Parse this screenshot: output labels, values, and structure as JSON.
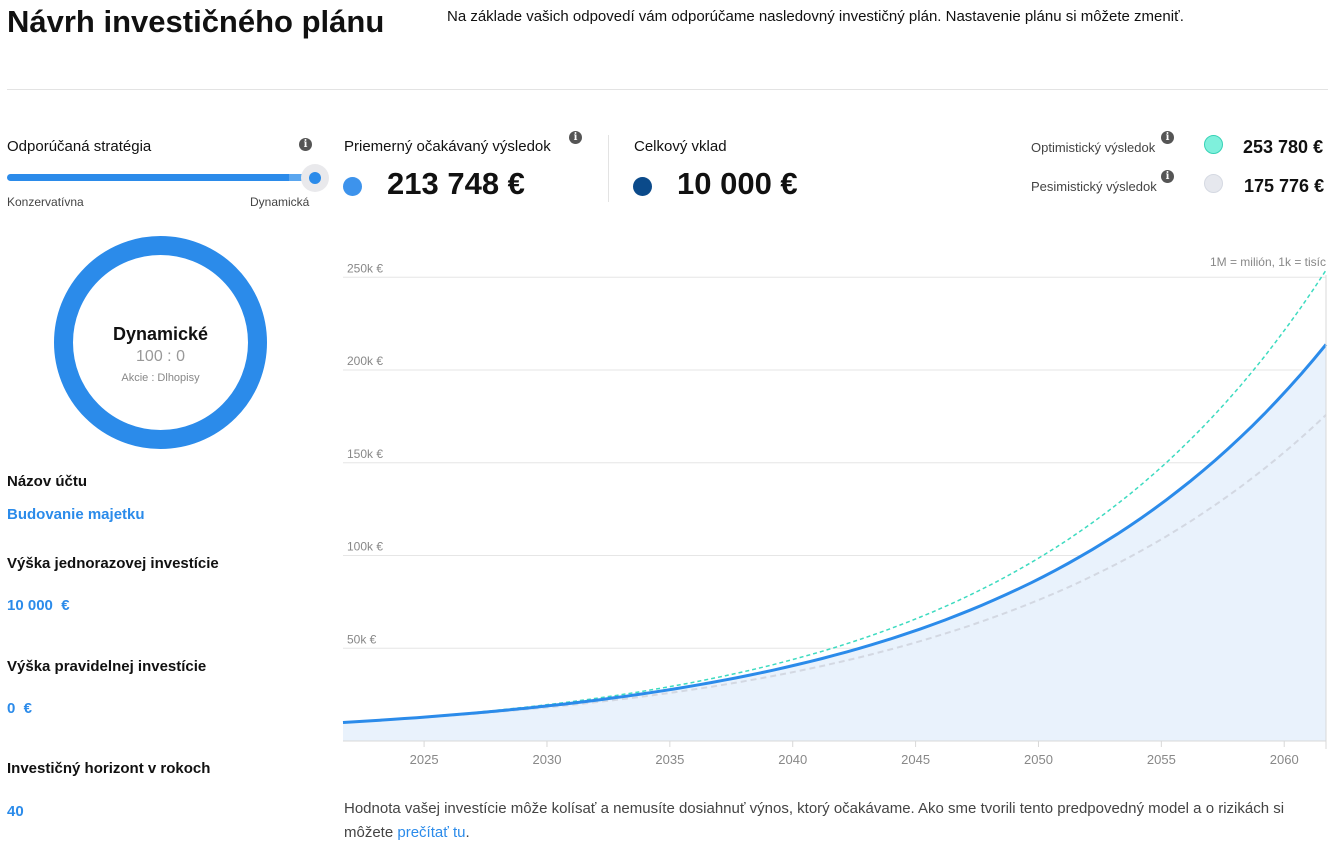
{
  "header": {
    "title": "Návrh investičného plánu",
    "intro": "Na základe vašich odpovedí vám odporúčame nasledovný investičný plán. Nastavenie plánu si môžete zmeniť."
  },
  "strategy": {
    "label": "Odporúčaná stratégia",
    "info_icon": "i",
    "slider_min_label": "Konzervatívna",
    "slider_max_label": "Dynamická",
    "slider_value": 1.0,
    "donut": {
      "name": "Dynamické",
      "ratio": "100 : 0",
      "legend": "Akcie : Dlhopisy",
      "stocks_share": 100,
      "color": "#2b8bea"
    }
  },
  "summary": {
    "expected_label": "Priemerný očakávaný výsledok",
    "expected_value": "213 748 €",
    "expected_color": "#3d93ec",
    "deposit_label": "Celkový vklad",
    "deposit_value": "10 000 €",
    "deposit_color": "#0b4a8a",
    "optimistic_label": "Optimistický výsledok",
    "optimistic_value": "253 780 €",
    "optimistic_color": "#7ff0dc",
    "pessimistic_label": "Pesimistický výsledok",
    "pessimistic_value": "175 776 €",
    "pessimistic_color": "#e6e8ee"
  },
  "account": {
    "name_label": "Názov účtu",
    "name_value": "Budovanie majetku",
    "lump_label": "Výška jednorazovej investície",
    "lump_value": "10 000  €",
    "regular_label": "Výška pravidelnej investície",
    "regular_value": "0  €",
    "horizon_label": "Investičný horizont v rokoch",
    "horizon_value": "40"
  },
  "chart_data": {
    "type": "line",
    "note": "1M = milión, 1k = tisíc",
    "y_ticks": [
      "50k €",
      "100k €",
      "150k €",
      "200k €",
      "250k €"
    ],
    "y_tick_values": [
      50000,
      100000,
      150000,
      200000,
      250000
    ],
    "x_ticks": [
      "2025",
      "2030",
      "2035",
      "2040",
      "2045",
      "2050",
      "2055",
      "2060"
    ],
    "xlim": [
      2021.7,
      2061.7
    ],
    "ylim": [
      0,
      262000
    ],
    "series": [
      {
        "name": "Optimistický výsledok",
        "x": [
          2021.7,
          2061.7
        ],
        "start": 10000,
        "end": 253780,
        "color": "#3ddbc0",
        "style": "dashed"
      },
      {
        "name": "Priemerný očakávaný výsledok",
        "x": [
          2021.7,
          2061.7
        ],
        "start": 10000,
        "end": 213748,
        "color": "#2b8bea",
        "style": "solid"
      },
      {
        "name": "Pesimistický výsledok",
        "x": [
          2021.7,
          2061.7
        ],
        "start": 10000,
        "end": 175776,
        "color": "#d3d8e2",
        "style": "dashed"
      }
    ],
    "fill_color": "#e9f2fc",
    "grid": true
  },
  "footer": {
    "disclaimer": "Hodnota vašej investície môže kolísať a nemusíte dosiahnuť výnos, ktorý očakávame. Ako sme tvorili tento predpovedný model a o rizikách si môžete ",
    "link_text": "prečítať tu",
    "after_link": "."
  }
}
